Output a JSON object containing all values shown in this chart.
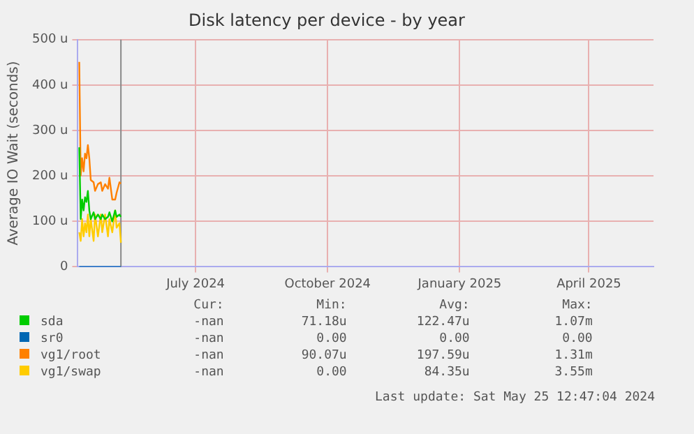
{
  "chart_data": {
    "type": "line",
    "title": "Disk latency per device - by year",
    "ylabel": "Average IO Wait (seconds)",
    "x": [
      "2024-04-26",
      "2024-04-27",
      "2024-04-28",
      "2024-04-29",
      "2024-04-30",
      "2024-05-01",
      "2024-05-02",
      "2024-05-03",
      "2024-05-04",
      "2024-05-06",
      "2024-05-07",
      "2024-05-09",
      "2024-05-11",
      "2024-05-12",
      "2024-05-14",
      "2024-05-16",
      "2024-05-17",
      "2024-05-19",
      "2024-05-21",
      "2024-05-22",
      "2024-05-24",
      "2024-05-25"
    ],
    "series": [
      {
        "name": "sda",
        "color": "#00cc00",
        "values": [
          263,
          105,
          148,
          124,
          153,
          143,
          167,
          124,
          105,
          120,
          105,
          115,
          105,
          115,
          105,
          110,
          120,
          100,
          124,
          110,
          115,
          110
        ]
      },
      {
        "name": "sr0",
        "color": "#0066b3",
        "values": [
          0,
          0,
          0,
          0,
          0,
          0,
          0,
          0,
          0,
          0,
          0,
          0,
          0,
          0,
          0,
          0,
          0,
          0,
          0,
          0,
          0,
          0
        ]
      },
      {
        "name": "vg1/root",
        "color": "#ff8000",
        "values": [
          451,
          201,
          239,
          210,
          249,
          239,
          268,
          239,
          191,
          186,
          167,
          182,
          186,
          167,
          182,
          172,
          196,
          148,
          148,
          163,
          186,
          183
        ]
      },
      {
        "name": "vg1/swap",
        "color": "#ffcc00",
        "values": [
          76,
          57,
          105,
          67,
          96,
          76,
          115,
          67,
          105,
          57,
          115,
          67,
          115,
          76,
          115,
          67,
          105,
          76,
          124,
          86,
          96,
          53
        ]
      }
    ],
    "xlim": [
      "2024-04-25",
      "2025-05-31"
    ],
    "xticks": [
      {
        "value": "2024-07-16",
        "label": "July 2024"
      },
      {
        "value": "2024-10-16",
        "label": "October 2024"
      },
      {
        "value": "2025-01-16",
        "label": "January 2025"
      },
      {
        "value": "2025-04-16",
        "label": "April 2025"
      }
    ],
    "ylim": [
      0,
      500
    ],
    "yticks": [
      {
        "value": 0,
        "label": "0"
      },
      {
        "value": 100,
        "label": "100 u"
      },
      {
        "value": 200,
        "label": "200 u"
      },
      {
        "value": 300,
        "label": "300 u"
      },
      {
        "value": 400,
        "label": "400 u"
      },
      {
        "value": 500,
        "label": "500 u"
      }
    ],
    "ref_lines": [
      {
        "axis": "x",
        "value": "2024-05-25",
        "color": "#888888"
      }
    ],
    "grid": true,
    "legend": "bottom",
    "marker": "none",
    "line_style": "solid",
    "annotations": [
      "Cur:",
      "Min:",
      "Avg:",
      "Max:",
      "-nan",
      "71.18u",
      "122.47u",
      "1.07m",
      "-nan",
      "0.00",
      "0.00",
      "0.00",
      "-nan",
      "90.07u",
      "197.59u",
      "1.31m",
      "-nan",
      "0.00",
      "84.35u",
      "3.55m",
      "Last update: Sat May 25 12:47:04 2024"
    ]
  }
}
